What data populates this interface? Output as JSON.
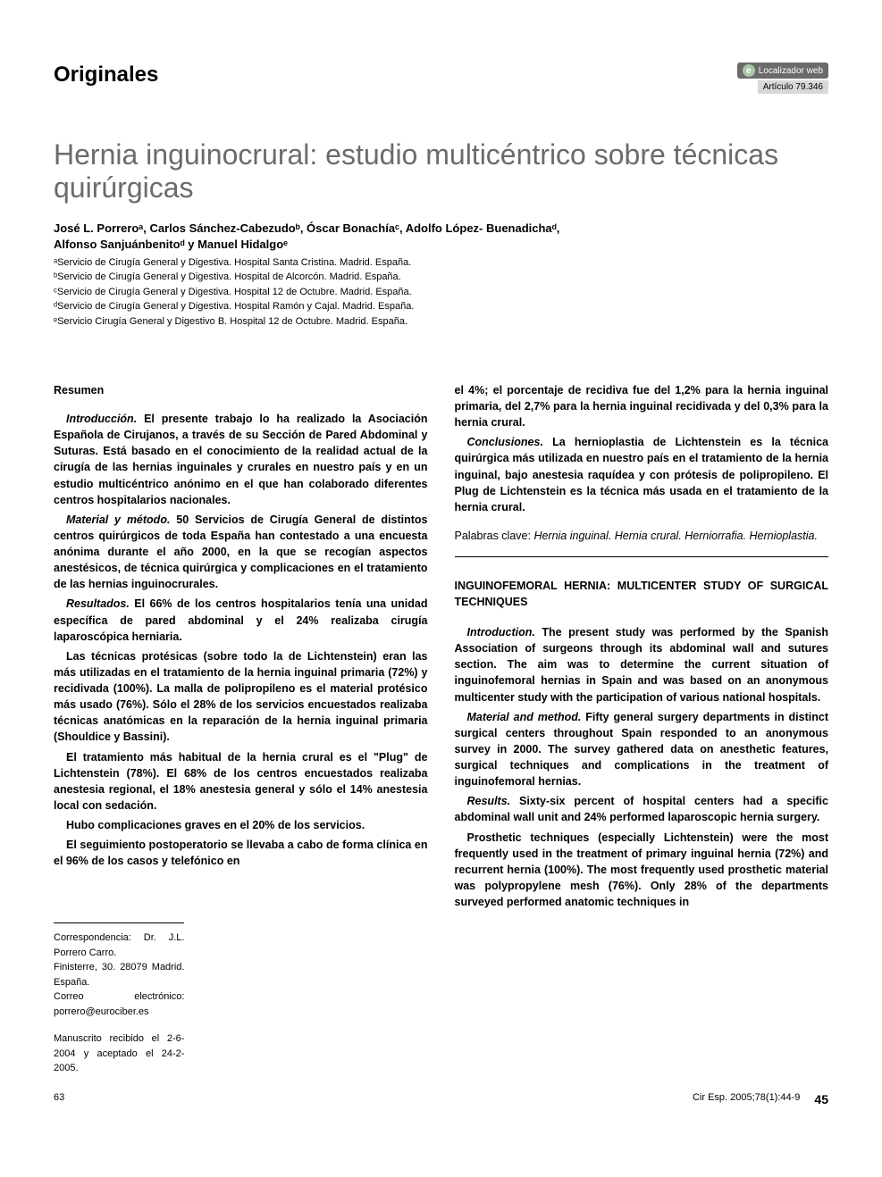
{
  "header": {
    "section_label": "Originales",
    "web_locator_label": "Localizador web",
    "web_locator_article": "Artículo",
    "web_locator_code": "79.346",
    "web_locator_icon": "e"
  },
  "title": "Hernia inguinocrural: estudio multicéntrico sobre técnicas quirúrgicas",
  "authors_line1": "José L. Porreroᵃ, Carlos Sánchez-Cabezudoᵇ, Óscar Bonachíaᶜ, Adolfo López- Buenadichaᵈ,",
  "authors_line2": "Alfonso Sanjuánbenitoᵈ y Manuel Hidalgoᵉ",
  "affiliations": [
    "ᵃServicio de Cirugía General y Digestiva. Hospital Santa Cristina. Madrid. España.",
    "ᵇServicio de Cirugía General y Digestiva. Hospital de Alcorcón. Madrid. España.",
    "ᶜServicio de Cirugía General y Digestiva. Hospital 12 de Octubre. Madrid. España.",
    "ᵈServicio de Cirugía General y Digestiva. Hospital Ramón y Cajal. Madrid. España.",
    "ᵉServicio Cirugía General y Digestivo B. Hospital 12 de Octubre. Madrid. España."
  ],
  "left": {
    "heading": "Resumen",
    "p1_label": "Introducción.",
    "p1": " El presente trabajo lo ha realizado la Asociación Española de Cirujanos, a través de su Sección de Pared Abdominal y Suturas. Está basado en el conocimiento de la realidad actual de la cirugía de las hernias inguinales y crurales en nuestro país y en un estudio multicéntrico anónimo en el que han colaborado diferentes centros hospitalarios nacionales.",
    "p2_label": "Material y método.",
    "p2": " 50 Servicios de Cirugía General de distintos centros quirúrgicos de toda España han contestado a una encuesta anónima durante el año 2000, en la que se recogían aspectos anestésicos, de técnica quirúrgica y complicaciones en el tratamiento de las hernias inguinocrurales.",
    "p3_label": "Resultados.",
    "p3": " El 66% de los centros hospitalarios tenía una unidad específica de pared abdominal y el 24% realizaba cirugía laparoscópica herniaria.",
    "p4": "Las técnicas protésicas (sobre todo la de Lichtenstein) eran las más utilizadas en el tratamiento de la hernia inguinal primaria (72%) y recidivada (100%). La malla de polipropileno es el material protésico más usado (76%). Sólo el 28% de los servicios encuestados realizaba técnicas anatómicas en la reparación de la hernia inguinal primaria (Shouldice y Bassini).",
    "p5": "El tratamiento más habitual de la hernia crural es el \"Plug\" de Lichtenstein (78%). El 68% de los centros encuestados realizaba anestesia regional, el 18% anestesia general y sólo el 14% anestesia local con sedación.",
    "p6": "Hubo complicaciones graves en el 20% de los servicios.",
    "p7": "El seguimiento postoperatorio se llevaba a cabo de forma clínica en el 96% de los casos y telefónico en"
  },
  "right": {
    "p1": "el 4%; el porcentaje de recidiva fue del 1,2% para la hernia inguinal primaria, del 2,7% para la hernia inguinal recidivada y del 0,3% para la hernia crural.",
    "p2_label": "Conclusiones.",
    "p2": " La hernioplastia de Lichtenstein es la técnica quirúrgica más utilizada en nuestro país en el tratamiento de la hernia inguinal, bajo anestesia raquídea y con prótesis de polipropileno. El Plug de Lichtenstein es la técnica más usada en el tratamiento de la hernia crural.",
    "keywords_label": "Palabras clave:",
    "keywords": " Hernia inguinal. Hernia crural. Herniorrafia. Hernioplastia.",
    "english_title": "INGUINOFEMORAL HERNIA: MULTICENTER STUDY OF SURGICAL TECHNIQUES",
    "ep1_label": "Introduction.",
    "ep1": " The present study was performed by the Spanish Association of surgeons through its abdominal wall and sutures section. The aim was to determine the current situation of inguinofemoral hernias in Spain and was based on an anonymous multicenter study with the participation of various national hospitals.",
    "ep2_label": "Material and method.",
    "ep2": " Fifty general surgery departments in distinct surgical centers throughout Spain responded to an anonymous survey in 2000. The survey gathered data on anesthetic features, surgical techniques and complications in the treatment of inguinofemoral hernias.",
    "ep3_label": "Results.",
    "ep3": " Sixty-six percent of hospital centers had a specific abdominal wall unit and 24% performed laparoscopic hernia surgery.",
    "ep4": "Prosthetic techniques (especially Lichtenstein) were the most frequently used in the treatment of primary inguinal hernia (72%) and recurrent hernia (100%). The most frequently used prosthetic material was polypropylene mesh (76%). Only 28% of the departments surveyed performed anatomic techniques in"
  },
  "correspondence": {
    "label": "Correspondencia:",
    "name": " Dr. J.L. Porrero Carro.",
    "address": "Finisterre, 30. 28079 Madrid. España.",
    "email_label": "Correo electrónico: ",
    "email": "porrero@eurociber.es"
  },
  "manuscript_date": "Manuscrito recibido el 2-6-2004 y aceptado el 24-2-2005.",
  "footer": {
    "left_num": "63",
    "citation": "Cir Esp. 2005;78(1):44-9",
    "page": "45"
  },
  "style": {
    "title_color": "#6b6b6b",
    "text_color": "#000000",
    "background": "#ffffff",
    "title_fontsize": 32,
    "body_fontsize": 12.5,
    "small_fontsize": 11,
    "locator_bg": "#6b6b6b",
    "locator_icon_bg": "#a8c8a8",
    "locator_bottom_bg": "#d8d8d8"
  }
}
